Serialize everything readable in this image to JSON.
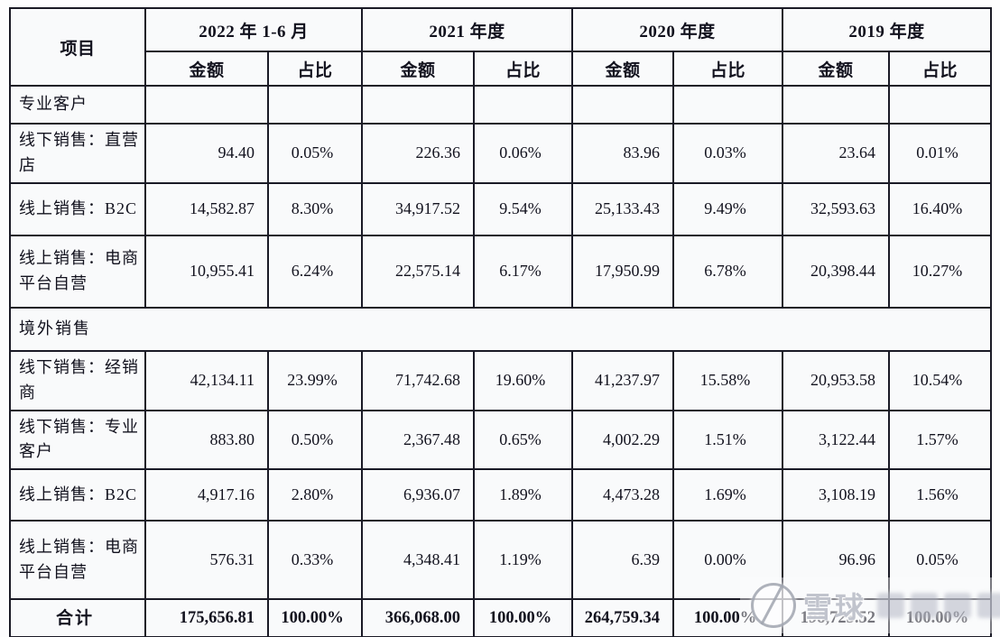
{
  "table": {
    "item_header": "项目",
    "col_groups": [
      {
        "label": "2022 年 1-6 月",
        "sub": [
          "金额",
          "占比"
        ]
      },
      {
        "label": "2021 年度",
        "sub": [
          "金额",
          "占比"
        ]
      },
      {
        "label": "2020 年度",
        "sub": [
          "金额",
          "占比"
        ]
      },
      {
        "label": "2019 年度",
        "sub": [
          "金额",
          "占比"
        ]
      }
    ],
    "rows": [
      {
        "type": "section-cells",
        "label": "专业客户",
        "values": [
          "",
          "",
          "",
          "",
          "",
          "",
          "",
          ""
        ]
      },
      {
        "type": "data",
        "label": "线下销售：直营店",
        "values": [
          "94.40",
          "0.05%",
          "226.36",
          "0.06%",
          "83.96",
          "0.03%",
          "23.64",
          "0.01%"
        ]
      },
      {
        "type": "data",
        "label": "线上销售：B2C",
        "values": [
          "14,582.87",
          "8.30%",
          "34,917.52",
          "9.54%",
          "25,133.43",
          "9.49%",
          "32,593.63",
          "16.40%"
        ]
      },
      {
        "type": "data",
        "label": "线上销售：电商平台自营",
        "values": [
          "10,955.41",
          "6.24%",
          "22,575.14",
          "6.17%",
          "17,950.99",
          "6.78%",
          "20,398.44",
          "10.27%"
        ]
      },
      {
        "type": "section-span",
        "label": "境外销售"
      },
      {
        "type": "data",
        "label": "线下销售：经销商",
        "values": [
          "42,134.11",
          "23.99%",
          "71,742.68",
          "19.60%",
          "41,237.97",
          "15.58%",
          "20,953.58",
          "10.54%"
        ]
      },
      {
        "type": "data",
        "label": "线下销售：专业客户",
        "values": [
          "883.80",
          "0.50%",
          "2,367.48",
          "0.65%",
          "4,002.29",
          "1.51%",
          "3,122.44",
          "1.57%"
        ]
      },
      {
        "type": "data",
        "label": "线上销售：B2C",
        "values": [
          "4,917.16",
          "2.80%",
          "6,936.07",
          "1.89%",
          "4,473.28",
          "1.69%",
          "3,108.19",
          "1.56%"
        ]
      },
      {
        "type": "data",
        "label": "线上销售：电商平台自营",
        "values": [
          "576.31",
          "0.33%",
          "4,348.41",
          "1.19%",
          "6.39",
          "0.00%",
          "96.96",
          "0.05%"
        ]
      },
      {
        "type": "total",
        "label": "合计",
        "values": [
          "175,656.81",
          "100.00%",
          "366,068.00",
          "100.00%",
          "264,759.34",
          "100.00%",
          "198,725.52",
          "100.00%"
        ]
      }
    ]
  },
  "watermark": {
    "brand": "雪球"
  }
}
